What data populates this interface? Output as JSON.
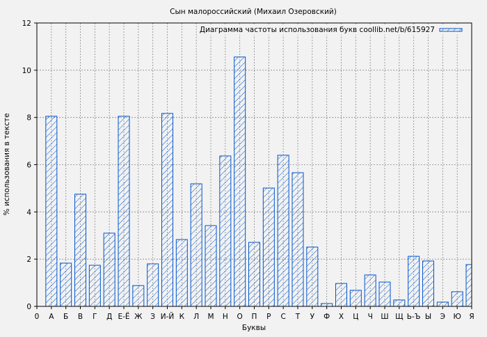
{
  "chart_data": {
    "type": "bar",
    "title": "Сын малороссийский (Михаил Озеровский)",
    "xlabel": "Буквы",
    "ylabel": "% использования в тексте",
    "legend": {
      "label": "Диаграмма частоты использования букв coollib.net/b/615927",
      "position": "top-right"
    },
    "ylim": [
      0,
      12
    ],
    "yticks": [
      "0",
      "2",
      "4",
      "6",
      "8",
      "10",
      "12"
    ],
    "x_origin_label": "0",
    "grid": true,
    "bar_color": "#0055cc",
    "hatch": "diagonal",
    "categories": [
      "А",
      "Б",
      "В",
      "Г",
      "Д",
      "Е-Ё",
      "Ж",
      "З",
      "И-Й",
      "К",
      "Л",
      "М",
      "Н",
      "О",
      "П",
      "Р",
      "С",
      "Т",
      "У",
      "Ф",
      "Х",
      "Ц",
      "Ч",
      "Ш",
      "Щ",
      "Ь-Ъ",
      "Ы",
      "Э",
      "Ю",
      "Я"
    ],
    "values": [
      8.05,
      1.83,
      4.75,
      1.74,
      3.1,
      8.05,
      0.88,
      1.8,
      8.17,
      2.83,
      5.19,
      3.42,
      6.37,
      10.56,
      2.71,
      5.01,
      6.4,
      5.66,
      2.51,
      0.12,
      0.97,
      0.68,
      1.33,
      1.03,
      0.27,
      2.12,
      1.92,
      0.18,
      0.62,
      1.77
    ]
  }
}
